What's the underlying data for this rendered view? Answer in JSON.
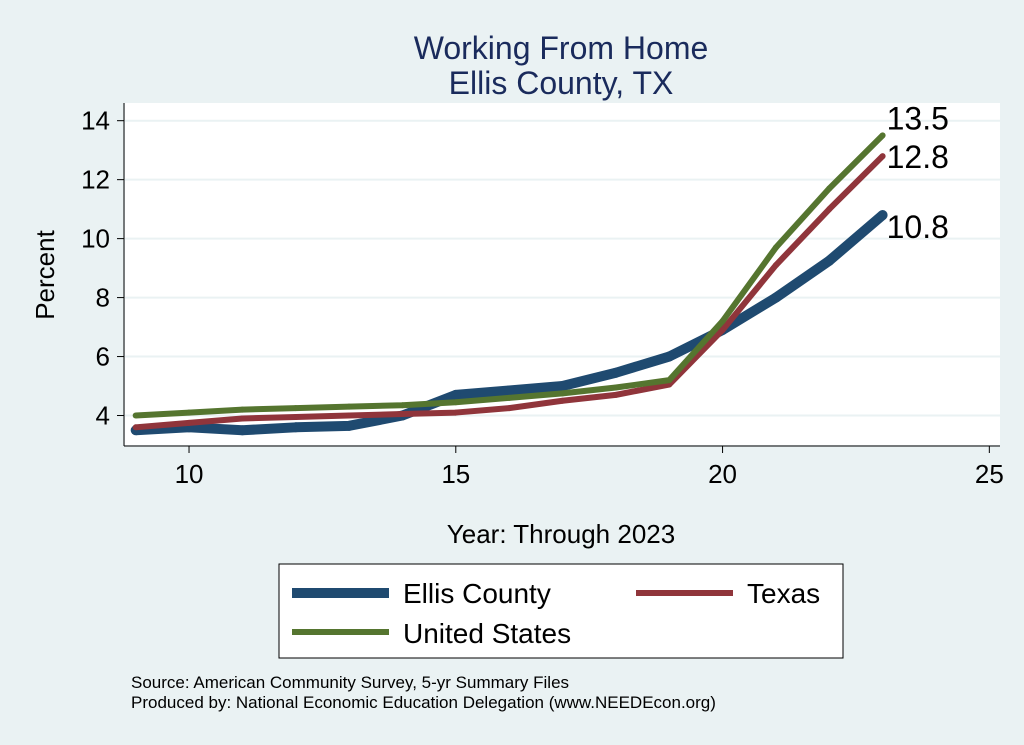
{
  "chart_data": {
    "type": "line",
    "title": "Working From Home",
    "subtitle": "Ellis County, TX",
    "xlabel": "Year: Through 2023",
    "ylabel": "Percent",
    "xlim": [
      8.8,
      25.2
    ],
    "ylim": [
      3.0,
      14.6
    ],
    "xticks": [
      10,
      15,
      20,
      25
    ],
    "yticks": [
      4,
      6,
      8,
      10,
      12,
      14
    ],
    "grid": true,
    "legend_position": "bottom",
    "x": [
      9,
      10,
      11,
      12,
      13,
      14,
      15,
      16,
      17,
      18,
      19,
      20,
      21,
      22,
      23
    ],
    "series": [
      {
        "name": "Ellis County",
        "color": "#1f4a70",
        "values": [
          3.5,
          3.6,
          3.5,
          3.6,
          3.65,
          4.0,
          4.7,
          4.85,
          5.0,
          5.45,
          6.0,
          6.9,
          8.0,
          9.25,
          10.8
        ],
        "end_label": "10.8"
      },
      {
        "name": "Texas",
        "color": "#90353b",
        "values": [
          3.6,
          3.75,
          3.9,
          3.95,
          4.0,
          4.05,
          4.1,
          4.25,
          4.5,
          4.7,
          5.05,
          6.9,
          9.1,
          11.0,
          12.8
        ],
        "end_label": "12.8"
      },
      {
        "name": "United States",
        "color": "#55752f",
        "values": [
          4.0,
          4.1,
          4.2,
          4.25,
          4.3,
          4.35,
          4.45,
          4.6,
          4.75,
          4.95,
          5.2,
          7.2,
          9.7,
          11.7,
          13.5
        ],
        "end_label": "13.5"
      }
    ],
    "notes": [
      "Source: American Community Survey, 5-yr Summary Files",
      "Produced by: National Economic Education Delegation (www.NEEDEcon.org)"
    ]
  }
}
